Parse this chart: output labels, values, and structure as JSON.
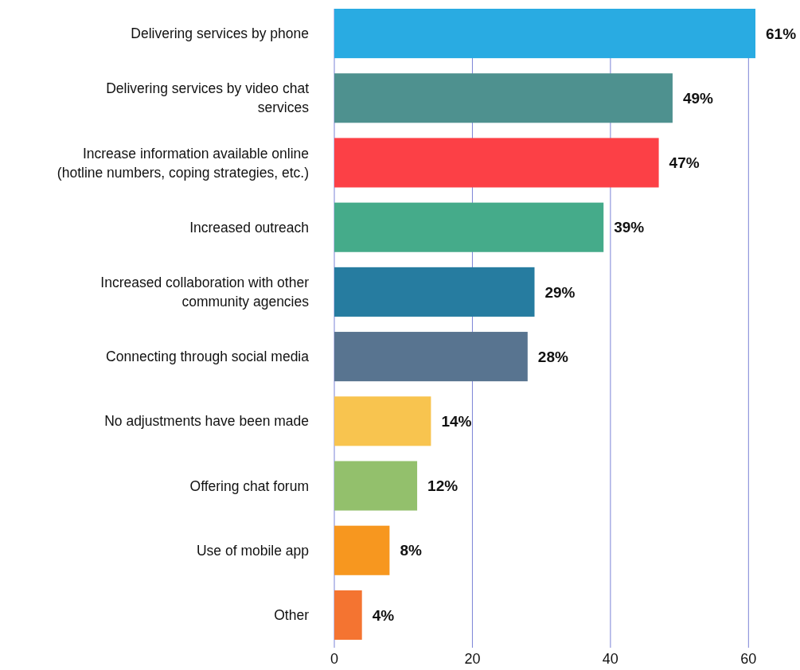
{
  "chart_data": {
    "type": "bar",
    "orientation": "horizontal",
    "categories": [
      "Delivering services by phone",
      "Delivering services by video chat\nservices",
      "Increase information available online\n(hotline numbers, coping strategies, etc.)",
      "Increased outreach",
      "Increased collaboration with other\ncommunity agencies",
      "Connecting through social media",
      "No adjustments have been made",
      "Offering chat forum",
      "Use of mobile app",
      "Other"
    ],
    "values": [
      61,
      49,
      47,
      39,
      29,
      28,
      14,
      12,
      8,
      4
    ],
    "colors": [
      "#29abe2",
      "#4e918f",
      "#fc4046",
      "#45ab8a",
      "#267ca0",
      "#587490",
      "#f8c44f",
      "#93c06c",
      "#f7971f",
      "#f47431"
    ],
    "value_labels": [
      "61%",
      "49%",
      "47%",
      "39%",
      "29%",
      "28%",
      "14%",
      "12%",
      "8%",
      "4%"
    ],
    "xlim": [
      0,
      61
    ],
    "xticks": [
      0,
      20,
      40,
      60
    ],
    "grid": "x"
  }
}
